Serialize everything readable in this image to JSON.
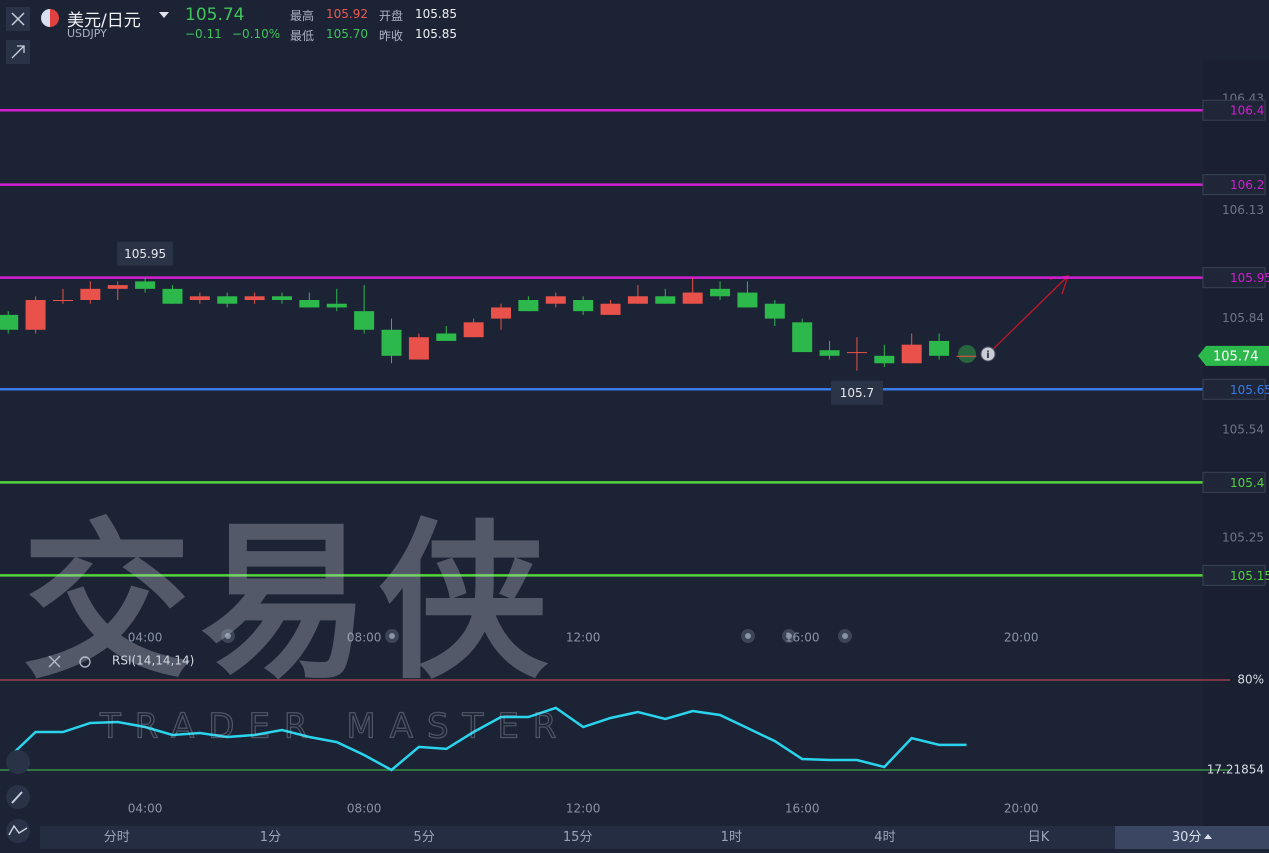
{
  "header": {
    "name": "美元/日元",
    "symbol": "USDJPY",
    "price": "105.74",
    "change": "−0.11",
    "change_pct": "−0.10%",
    "high_label": "最高",
    "high": "105.92",
    "open_label": "开盘",
    "open": "105.85",
    "low_label": "最低",
    "low": "105.70",
    "prev_label": "昨收",
    "prev": "105.85"
  },
  "watermark": {
    "cn": "交易侠",
    "en": "TRADER MASTER"
  },
  "tabs": [
    "分时",
    "1分",
    "5分",
    "15分",
    "1时",
    "4时",
    "日K",
    "30分"
  ],
  "selected_tab": 7,
  "chart_data": [
    {
      "type": "candlestick",
      "up_color": "#e8524a",
      "down_color": "#2db84c",
      "x": [
        1.5,
        2,
        2.5,
        3,
        3.5,
        4,
        4.5,
        5,
        5.5,
        6,
        6.5,
        7,
        7.5,
        8,
        8.5,
        9,
        9.5,
        10,
        10.5,
        11,
        11.5,
        12,
        12.5,
        13,
        13.5,
        14,
        14.5,
        15,
        15.5,
        16,
        16.5,
        17,
        17.5,
        18,
        18.5,
        19
      ],
      "open": [
        105.85,
        105.81,
        105.89,
        105.89,
        105.92,
        105.94,
        105.92,
        105.89,
        105.9,
        105.89,
        105.9,
        105.89,
        105.88,
        105.86,
        105.81,
        105.73,
        105.8,
        105.79,
        105.84,
        105.89,
        105.88,
        105.89,
        105.85,
        105.88,
        105.9,
        105.88,
        105.92,
        105.91,
        105.88,
        105.83,
        105.755,
        105.75,
        105.74,
        105.72,
        105.78,
        105.74
      ],
      "high": [
        105.86,
        105.9,
        105.92,
        105.94,
        105.94,
        105.95,
        105.93,
        105.91,
        105.91,
        105.91,
        105.91,
        105.91,
        105.92,
        105.93,
        105.84,
        105.8,
        105.82,
        105.84,
        105.88,
        105.9,
        105.91,
        105.9,
        105.89,
        105.93,
        105.92,
        105.95,
        105.94,
        105.94,
        105.89,
        105.84,
        105.78,
        105.79,
        105.77,
        105.8,
        105.8,
        105.74
      ],
      "low": [
        105.8,
        105.8,
        105.88,
        105.88,
        105.89,
        105.91,
        105.88,
        105.88,
        105.87,
        105.88,
        105.88,
        105.87,
        105.86,
        105.8,
        105.72,
        105.73,
        105.78,
        105.79,
        105.81,
        105.86,
        105.87,
        105.85,
        105.85,
        105.88,
        105.88,
        105.88,
        105.89,
        105.87,
        105.82,
        105.75,
        105.73,
        105.7,
        105.71,
        105.72,
        105.73,
        105.74
      ],
      "close": [
        105.81,
        105.89,
        105.89,
        105.92,
        105.93,
        105.92,
        105.88,
        105.9,
        105.88,
        105.9,
        105.89,
        105.87,
        105.87,
        105.81,
        105.74,
        105.79,
        105.78,
        105.83,
        105.87,
        105.86,
        105.9,
        105.86,
        105.88,
        105.9,
        105.88,
        105.91,
        105.9,
        105.87,
        105.84,
        105.75,
        105.74,
        105.75,
        105.72,
        105.77,
        105.74,
        105.74
      ],
      "ylim": [
        105.03,
        106.535
      ],
      "yticks": [
        106.43,
        106.13,
        105.84,
        105.54,
        105.25
      ],
      "xlim": [
        1.35,
        23.32
      ],
      "xticks": [
        {
          "value": 4,
          "label": "04:00"
        },
        {
          "value": 8,
          "label": "08:00"
        },
        {
          "value": 12,
          "label": "12:00"
        },
        {
          "value": 16,
          "label": "16:00"
        },
        {
          "value": 20,
          "label": "20:00"
        }
      ],
      "levels": [
        {
          "value": 106.4,
          "color": "#d41ed4"
        },
        {
          "value": 106.2,
          "color": "#d41ed4"
        },
        {
          "value": 105.95,
          "color": "#d41ed4"
        },
        {
          "value": 105.65,
          "color": "#3a7be8"
        },
        {
          "value": 105.4,
          "color": "#52d43a"
        },
        {
          "value": 105.15,
          "color": "#52d43a"
        }
      ],
      "max_label": 105.95,
      "min_label": 105.7,
      "last_price": 105.74,
      "last_color": "#2db84c"
    },
    {
      "type": "line",
      "title": "RSI(14,14,14)",
      "x": [
        1.5,
        2,
        2.5,
        3,
        3.5,
        4,
        4.5,
        5,
        5.5,
        6,
        6.5,
        7,
        7.5,
        8,
        8.5,
        9,
        9.5,
        10,
        10.5,
        11,
        11.5,
        12,
        12.5,
        13,
        13.5,
        14,
        14.5,
        15,
        15.5,
        16,
        16.5,
        17,
        17.5,
        18,
        18.5,
        19
      ],
      "series": [
        {
          "color": "#2ad4ec",
          "values": [
            25.6,
            43.7,
            43.7,
            50,
            50.7,
            47.2,
            41.6,
            43,
            40.2,
            41.6,
            45.1,
            40.2,
            36.7,
            27.7,
            17.2,
            33.3,
            31.9,
            43.7,
            54.2,
            54.2,
            60.5,
            47.2,
            53.5,
            57.7,
            52.8,
            58.4,
            55.6,
            46.5,
            37.4,
            24.9,
            24.2,
            24.2,
            19.3,
            39.5,
            34.7,
            34.7
          ]
        }
      ],
      "ylim": [
        6.75,
        90.46
      ],
      "yticks": [
        {
          "value": 80,
          "label": "80%",
          "color": "#b0474e"
        },
        {
          "value": 17.21854,
          "label": "17.21854",
          "color": "#3aa84a"
        }
      ],
      "xlim": [
        1.35,
        23.32
      ],
      "xticks": [
        {
          "value": 4,
          "label": "04:00"
        },
        {
          "value": 8,
          "label": "08:00"
        },
        {
          "value": 12,
          "label": "12:00"
        },
        {
          "value": 16,
          "label": "16:00"
        },
        {
          "value": 20,
          "label": "20:00"
        }
      ]
    }
  ]
}
